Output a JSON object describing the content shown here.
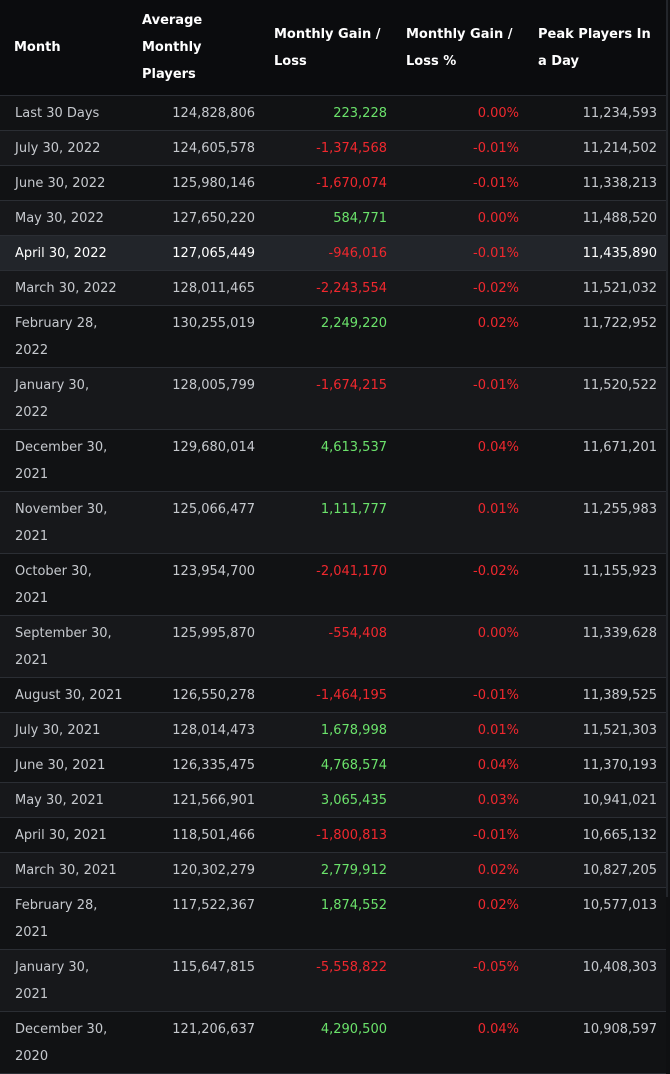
{
  "colors": {
    "gain": "#6be26b",
    "loss": "#f0282e",
    "header_bg": "#0b0c0e",
    "row_bg": "#17181b",
    "highlight_bg": "#22252a"
  },
  "headers": {
    "month": "Month",
    "average": "Average Monthly Players",
    "gain": "Monthly Gain / Loss",
    "gain_pct": "Monthly Gain / Loss %",
    "peak": "Peak Players In a Day"
  },
  "rows": [
    {
      "month": "Last 30 Days",
      "average": "124,828,806",
      "gain": "223,228",
      "gain_pct": "0.00%",
      "peak": "11,234,593",
      "trend": "pos"
    },
    {
      "month": "July 30, 2022",
      "average": "124,605,578",
      "gain": "-1,374,568",
      "gain_pct": "-0.01%",
      "peak": "11,214,502",
      "trend": "neg"
    },
    {
      "month": "June 30, 2022",
      "average": "125,980,146",
      "gain": "-1,670,074",
      "gain_pct": "-0.01%",
      "peak": "11,338,213",
      "trend": "neg"
    },
    {
      "month": "May 30, 2022",
      "average": "127,650,220",
      "gain": "584,771",
      "gain_pct": "0.00%",
      "peak": "11,488,520",
      "trend": "pos"
    },
    {
      "month": "April 30, 2022",
      "average": "127,065,449",
      "gain": "-946,016",
      "gain_pct": "-0.01%",
      "peak": "11,435,890",
      "trend": "neg"
    },
    {
      "month": "March 30, 2022",
      "average": "128,011,465",
      "gain": "-2,243,554",
      "gain_pct": "-0.02%",
      "peak": "11,521,032",
      "trend": "neg"
    },
    {
      "month": "February 28, 2022",
      "average": "130,255,019",
      "gain": "2,249,220",
      "gain_pct": "0.02%",
      "peak": "11,722,952",
      "trend": "pos"
    },
    {
      "month": "January 30, 2022",
      "average": "128,005,799",
      "gain": "-1,674,215",
      "gain_pct": "-0.01%",
      "peak": "11,520,522",
      "trend": "neg"
    },
    {
      "month": "December 30, 2021",
      "average": "129,680,014",
      "gain": "4,613,537",
      "gain_pct": "0.04%",
      "peak": "11,671,201",
      "trend": "pos"
    },
    {
      "month": "November 30, 2021",
      "average": "125,066,477",
      "gain": "1,111,777",
      "gain_pct": "0.01%",
      "peak": "11,255,983",
      "trend": "pos"
    },
    {
      "month": "October 30, 2021",
      "average": "123,954,700",
      "gain": "-2,041,170",
      "gain_pct": "-0.02%",
      "peak": "11,155,923",
      "trend": "neg"
    },
    {
      "month": "September 30, 2021",
      "average": "125,995,870",
      "gain": "-554,408",
      "gain_pct": "0.00%",
      "peak": "11,339,628",
      "trend": "neg"
    },
    {
      "month": "August 30, 2021",
      "average": "126,550,278",
      "gain": "-1,464,195",
      "gain_pct": "-0.01%",
      "peak": "11,389,525",
      "trend": "neg"
    },
    {
      "month": "July 30, 2021",
      "average": "128,014,473",
      "gain": "1,678,998",
      "gain_pct": "0.01%",
      "peak": "11,521,303",
      "trend": "pos"
    },
    {
      "month": "June 30, 2021",
      "average": "126,335,475",
      "gain": "4,768,574",
      "gain_pct": "0.04%",
      "peak": "11,370,193",
      "trend": "pos"
    },
    {
      "month": "May 30, 2021",
      "average": "121,566,901",
      "gain": "3,065,435",
      "gain_pct": "0.03%",
      "peak": "10,941,021",
      "trend": "pos"
    },
    {
      "month": "April 30, 2021",
      "average": "118,501,466",
      "gain": "-1,800,813",
      "gain_pct": "-0.01%",
      "peak": "10,665,132",
      "trend": "neg"
    },
    {
      "month": "March 30, 2021",
      "average": "120,302,279",
      "gain": "2,779,912",
      "gain_pct": "0.02%",
      "peak": "10,827,205",
      "trend": "pos"
    },
    {
      "month": "February 28, 2021",
      "average": "117,522,367",
      "gain": "1,874,552",
      "gain_pct": "0.02%",
      "peak": "10,577,013",
      "trend": "pos"
    },
    {
      "month": "January 30, 2021",
      "average": "115,647,815",
      "gain": "-5,558,822",
      "gain_pct": "-0.05%",
      "peak": "10,408,303",
      "trend": "neg"
    },
    {
      "month": "December 30, 2020",
      "average": "121,206,637",
      "gain": "4,290,500",
      "gain_pct": "0.04%",
      "peak": "10,908,597",
      "trend": "pos"
    }
  ],
  "highlighted_row": 4
}
